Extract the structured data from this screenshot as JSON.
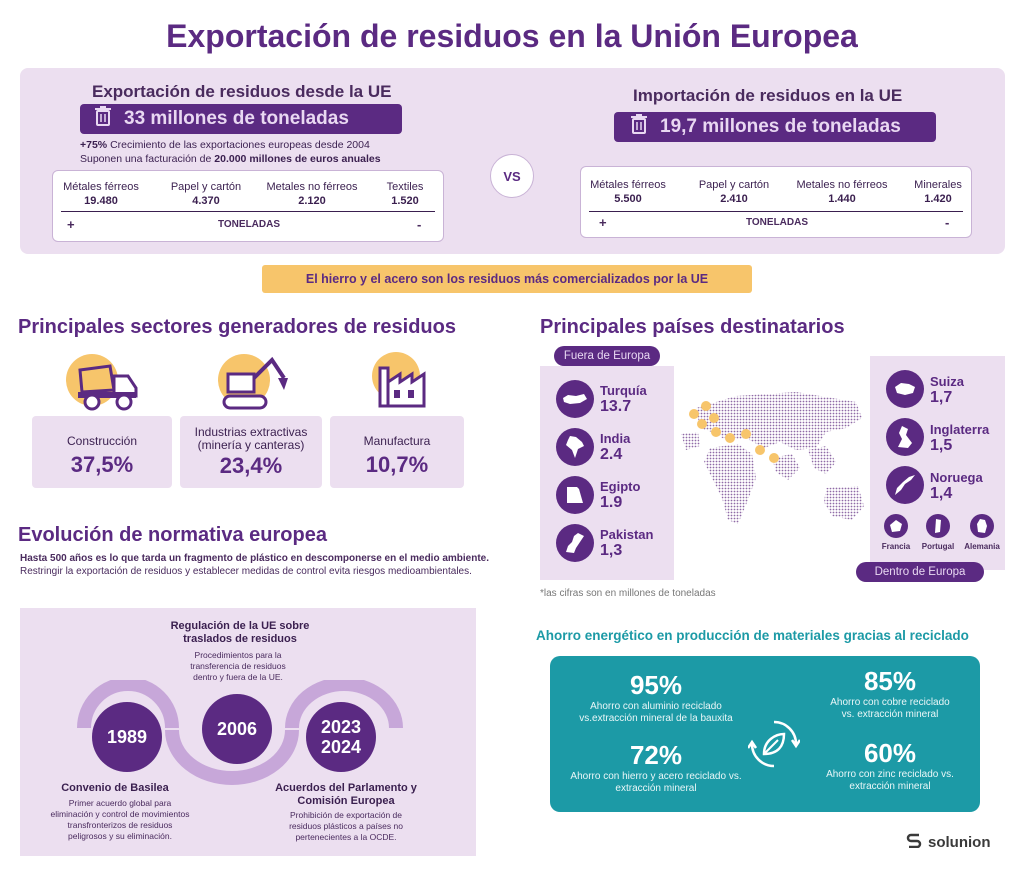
{
  "title": "Exportación de residuos en la Unión Europea",
  "export": {
    "heading": "Exportación de residuos desde la UE",
    "amount": "33 millones de toneladas",
    "line1_bold": "+75%",
    "line1": " Crecimiento de las exportaciones europeas desde 2004",
    "line2": "Suponen una facturación de ",
    "line2_bold": "20.000 millones de euros anuales",
    "items": [
      {
        "name": "Métales férreos",
        "value": "19.480"
      },
      {
        "name": "Papel y cartón",
        "value": "4.370"
      },
      {
        "name": "Metales no férreos",
        "value": "2.120"
      },
      {
        "name": "Textiles",
        "value": "1.520"
      }
    ],
    "plus": "+",
    "unit": "TONELADAS",
    "minus": "-"
  },
  "vs": "VS",
  "import": {
    "heading": "Importación de residuos en la UE",
    "amount": "19,7 millones de toneladas",
    "items": [
      {
        "name": "Métales férreos",
        "value": "5.500"
      },
      {
        "name": "Papel y cartón",
        "value": "2.410"
      },
      {
        "name": "Metales no férreos",
        "value": "1.440"
      },
      {
        "name": "Minerales",
        "value": "1.420"
      }
    ],
    "plus": "+",
    "unit": "TONELADAS",
    "minus": "-"
  },
  "banner": "El hierro y el acero son los residuos más comercializados por la UE",
  "sectors": {
    "heading": "Principales sectores generadores de residuos",
    "items": [
      {
        "label": "Construcción",
        "value": "37,5%",
        "icon": "truck-icon"
      },
      {
        "label": "Industrias extractivas (minería y canteras)",
        "value": "23,4%",
        "icon": "excavator-icon"
      },
      {
        "label": "Manufactura",
        "value": "10,7%",
        "icon": "factory-icon"
      }
    ]
  },
  "countries": {
    "heading": "Principales países destinatarios",
    "outside_label": "Fuera de Europa",
    "inside_label": "Dentro de Europa",
    "outside": [
      {
        "name": "Turquía",
        "value": "13.7"
      },
      {
        "name": "India",
        "value": "2.4"
      },
      {
        "name": "Egipto",
        "value": "1.9"
      },
      {
        "name": "Pakistan",
        "value": "1,3"
      }
    ],
    "inside": [
      {
        "name": "Suiza",
        "value": "1,7"
      },
      {
        "name": "Inglaterra",
        "value": "1,5"
      },
      {
        "name": "Noruega",
        "value": "1,4"
      }
    ],
    "small": [
      "Francia",
      "Portugal",
      "Alemania"
    ],
    "note": "*las cifras son en millones de toneladas"
  },
  "normativa": {
    "heading": "Evolución de normativa europea",
    "intro_bold": "Hasta 500 años es lo que tarda un fragmento de plástico en descomponerse en el medio ambiente.",
    "intro": " Restringir la exportación de residuos y establecer medidas de control evita riesgos medioambientales.",
    "events": [
      {
        "year": "1989",
        "title": "Convenio de Basilea",
        "desc": "Primer acuerdo global para eliminación y control de movimientos transfronterizos de residuos peligrosos y su eliminación."
      },
      {
        "year": "2006",
        "title": "Regulación de la UE sobre traslados de residuos",
        "desc": "Procedimientos para la transferencia de residuos dentro y fuera de la UE."
      },
      {
        "year": "2023 2024",
        "title": "Acuerdos del Parlamento y Comisión Europea",
        "desc": "Prohibición de exportación de residuos plásticos a países no pertenecientes a la OCDE."
      }
    ]
  },
  "ahorro": {
    "heading": "Ahorro energético en producción de materiales gracias al reciclado",
    "items": [
      {
        "value": "95%",
        "desc": "Ahorro con aluminio reciclado vs.extracción mineral de la bauxita"
      },
      {
        "value": "85%",
        "desc": "Ahorro con cobre reciclado vs. extracción mineral"
      },
      {
        "value": "72%",
        "desc": "Ahorro con hierro y acero reciclado vs. extracción mineral"
      },
      {
        "value": "60%",
        "desc": "Ahorro con zinc reciclado vs. extracción mineral"
      }
    ]
  },
  "brand": "solunion"
}
